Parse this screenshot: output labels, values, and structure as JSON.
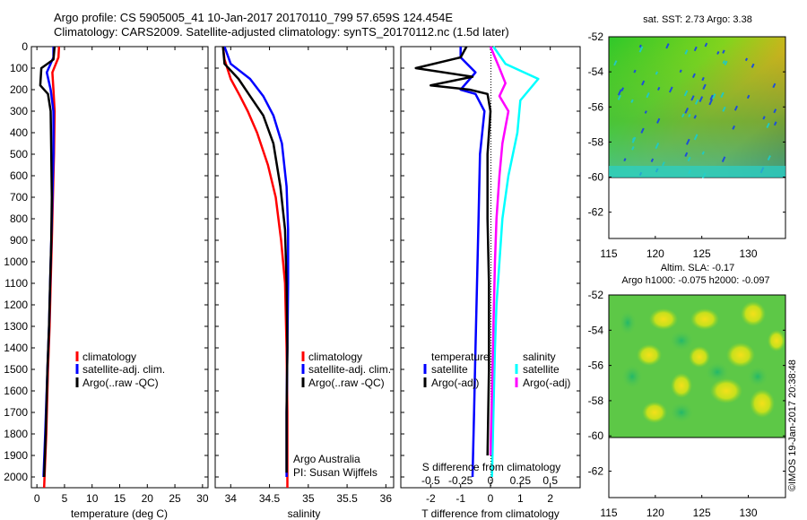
{
  "header": {
    "line1": "Argo profile: CS 5905005_41 10-Jan-2017 20170110_799 57.659S 124.454E",
    "line2": "Climatology: CARS2009. Satellite-adjusted climatology: synTS_20170112.nc (1.5d later)"
  },
  "colors": {
    "climatology": "#ff0000",
    "satellite": "#0000ff",
    "argo": "#000000",
    "salinity_satellite": "#00ffff",
    "salinity_argo": "#ff00ff"
  },
  "chart_data": [
    {
      "type": "line",
      "id": "temperature",
      "xlabel": "temperature (deg C)",
      "ylabel": "",
      "xlim": [
        -1,
        31
      ],
      "ylim": [
        2050,
        0
      ],
      "xticks": [
        0,
        5,
        10,
        15,
        20,
        25,
        30
      ],
      "yticks": [
        0,
        100,
        200,
        300,
        400,
        500,
        600,
        700,
        800,
        900,
        1000,
        1100,
        1200,
        1300,
        1400,
        1500,
        1600,
        1700,
        1800,
        1900,
        2000
      ],
      "legend": [
        "climatology",
        "satellite-adj. clim.",
        "Argo(..raw -QC)"
      ],
      "series": [
        {
          "name": "climatology",
          "color": "#ff0000",
          "x": [
            4.0,
            3.9,
            2.8,
            3.0,
            3.2,
            3.1,
            2.9,
            2.7,
            2.5,
            2.3,
            2.0,
            1.7,
            1.3
          ],
          "y": [
            0,
            50,
            120,
            200,
            300,
            500,
            700,
            900,
            1100,
            1300,
            1500,
            1800,
            2050
          ]
        },
        {
          "name": "satellite-adj. clim.",
          "color": "#0000ff",
          "x": [
            3.0,
            3.0,
            1.8,
            2.5,
            3.0,
            3.0,
            2.8,
            2.6,
            2.4,
            2.2,
            1.9,
            1.5,
            1.2
          ],
          "y": [
            0,
            50,
            120,
            200,
            300,
            500,
            700,
            900,
            1100,
            1300,
            1500,
            1800,
            2000
          ]
        },
        {
          "name": "Argo(..raw -QC)",
          "color": "#000000",
          "x": [
            3.2,
            3.0,
            0.8,
            0.6,
            2.0,
            2.5,
            2.6,
            2.7,
            2.6,
            2.4,
            2.2,
            1.9,
            1.6,
            1.3
          ],
          "y": [
            0,
            60,
            100,
            180,
            220,
            300,
            500,
            700,
            900,
            1100,
            1300,
            1500,
            1800,
            2000
          ]
        }
      ]
    },
    {
      "type": "line",
      "id": "salinity",
      "xlabel": "salinity",
      "xlim": [
        33.8,
        36.1
      ],
      "ylim": [
        2050,
        0
      ],
      "xticks": [
        34,
        34.5,
        35,
        35.5,
        36
      ],
      "xticklabels": [
        "34",
        "34.5",
        "35",
        "35.5",
        "36"
      ],
      "legend": [
        "climatology",
        "satellite-adj. clim.",
        "Argo(..raw -QC)"
      ],
      "annotations": [
        "Argo Australia",
        "PI: Susan Wijffels"
      ],
      "series": [
        {
          "name": "climatology",
          "color": "#ff0000",
          "x": [
            33.9,
            33.92,
            34.0,
            34.12,
            34.22,
            34.34,
            34.48,
            34.58,
            34.65,
            34.7,
            34.72,
            34.73,
            34.73
          ],
          "y": [
            0,
            60,
            150,
            230,
            300,
            400,
            550,
            700,
            900,
            1100,
            1400,
            1700,
            2050
          ]
        },
        {
          "name": "satellite-adj. clim.",
          "color": "#0000ff",
          "x": [
            33.92,
            34.0,
            34.25,
            34.42,
            34.55,
            34.66,
            34.72,
            34.74,
            34.74,
            34.73,
            34.72,
            34.72
          ],
          "y": [
            0,
            80,
            150,
            230,
            320,
            450,
            650,
            850,
            1100,
            1400,
            1700,
            2000
          ]
        },
        {
          "name": "Argo(..raw -QC)",
          "color": "#000000",
          "x": [
            33.9,
            33.92,
            34.1,
            34.25,
            34.42,
            34.55,
            34.64,
            34.7,
            34.72,
            34.73,
            34.72,
            34.72
          ],
          "y": [
            0,
            80,
            150,
            230,
            320,
            450,
            650,
            850,
            1100,
            1400,
            1700,
            1980
          ]
        }
      ]
    },
    {
      "type": "line",
      "id": "difference",
      "xlabel": "T difference from climatology",
      "xlabel_top": "S difference from climatology",
      "xlim": [
        -3,
        3
      ],
      "ylim": [
        2050,
        0
      ],
      "xticks": [
        -2,
        -1,
        0,
        1,
        2
      ],
      "xticks_top_labels": [
        "-0.5",
        "-0.25",
        "0",
        "0.25",
        "0.5"
      ],
      "legend_headers": [
        "temperature",
        "salinity"
      ],
      "legend": [
        "satellite",
        "Argo(-adj)",
        "satellite",
        "Argo(-adj)"
      ],
      "series": [
        {
          "name": "temperature satellite",
          "color": "#0000ff",
          "x": [
            -1.0,
            -1.0,
            -0.5,
            -1.0,
            -0.5,
            -0.2,
            -0.35,
            -0.4,
            -0.45,
            -0.5,
            -0.55,
            -0.6
          ],
          "y": [
            0,
            50,
            120,
            200,
            220,
            300,
            500,
            800,
            1100,
            1400,
            1700,
            2000
          ]
        },
        {
          "name": "temperature Argo(-adj)",
          "color": "#000000",
          "x": [
            -0.8,
            -1.0,
            -2.5,
            -0.6,
            -2.0,
            -0.7,
            -0.1,
            0.0,
            -0.1,
            -0.1,
            -0.05,
            -0.05,
            -0.1
          ],
          "y": [
            0,
            50,
            100,
            140,
            180,
            200,
            220,
            300,
            500,
            800,
            1100,
            1500,
            1900
          ]
        },
        {
          "name": "salinity satellite",
          "color": "#00ffff",
          "x": [
            0.1,
            0.5,
            1.6,
            1.0,
            0.9,
            0.6,
            0.4,
            0.3,
            0.2,
            0.15,
            0.1,
            0.05
          ],
          "y": [
            0,
            80,
            150,
            250,
            400,
            600,
            800,
            1000,
            1200,
            1400,
            1700,
            2000
          ]
        },
        {
          "name": "salinity Argo(-adj)",
          "color": "#ff00ff",
          "x": [
            0.0,
            0.3,
            0.5,
            0.3,
            0.6,
            0.4,
            0.3,
            0.2,
            0.15,
            0.1,
            0.05,
            0.0
          ],
          "y": [
            0,
            100,
            170,
            230,
            300,
            450,
            600,
            800,
            1000,
            1300,
            1600,
            1900
          ]
        }
      ]
    },
    {
      "type": "heatmap",
      "id": "sst_map",
      "title": "sat. SST: 2.73 Argo: 3.38",
      "xlim": [
        115,
        134
      ],
      "ylim": [
        -63.5,
        -52
      ],
      "xticks": [
        115,
        120,
        125,
        130
      ],
      "yticks": [
        -52,
        -54,
        -56,
        -58,
        -60,
        -62
      ]
    },
    {
      "type": "heatmap",
      "id": "sla_map",
      "title": "Altim. SLA: -0.17",
      "subtitle": "Argo h1000: -0.075 h2000: -0.097",
      "xlim": [
        115,
        134
      ],
      "ylim": [
        -63.5,
        -52
      ],
      "xticks": [
        115,
        120,
        125,
        130
      ],
      "yticks": [
        -52,
        -54,
        -56,
        -58,
        -60,
        -62
      ]
    }
  ],
  "footer": {
    "credit": "©IMOS 19-Jan-2017 20:38:48"
  }
}
